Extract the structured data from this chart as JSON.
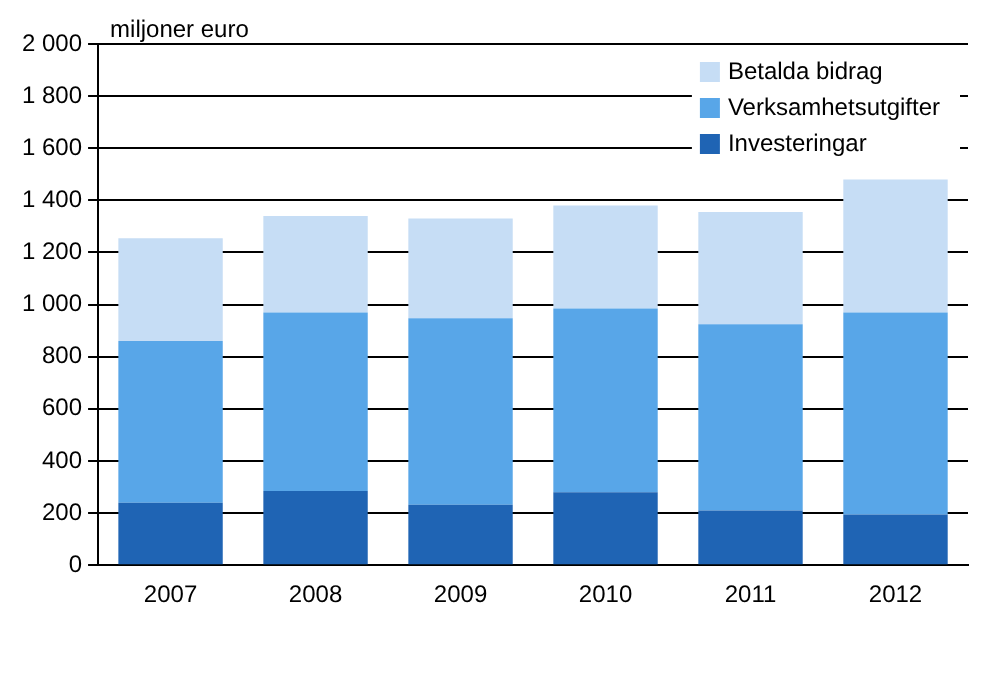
{
  "chart_data": {
    "type": "bar",
    "ylabel": "miljoner euro",
    "categories": [
      "2007",
      "2008",
      "2009",
      "2010",
      "2011",
      "2012"
    ],
    "stacked": true,
    "series": [
      {
        "name": "Investeringar",
        "color": "#1f64b4",
        "values": [
          240,
          285,
          232,
          280,
          210,
          195
        ]
      },
      {
        "name": "Verksamhetsutgifter",
        "color": "#58a6e8",
        "values": [
          620,
          685,
          716,
          705,
          715,
          775
        ]
      },
      {
        "name": "Betalda bidrag",
        "color": "#c6ddf5",
        "values": [
          395,
          370,
          382,
          395,
          430,
          510
        ]
      }
    ],
    "ylim": [
      0,
      2000
    ],
    "yticks": [
      0,
      200,
      400,
      600,
      800,
      {
        "value": 1000,
        "label": "1 000"
      },
      {
        "value": 1200,
        "label": "1 200"
      },
      {
        "value": 1400,
        "label": "1 400"
      },
      {
        "value": 1600,
        "label": "1 600"
      },
      {
        "value": 1800,
        "label": "1 800"
      },
      {
        "value": 2000,
        "label": "2 000"
      }
    ],
    "grid": "y",
    "legend": "top right"
  }
}
